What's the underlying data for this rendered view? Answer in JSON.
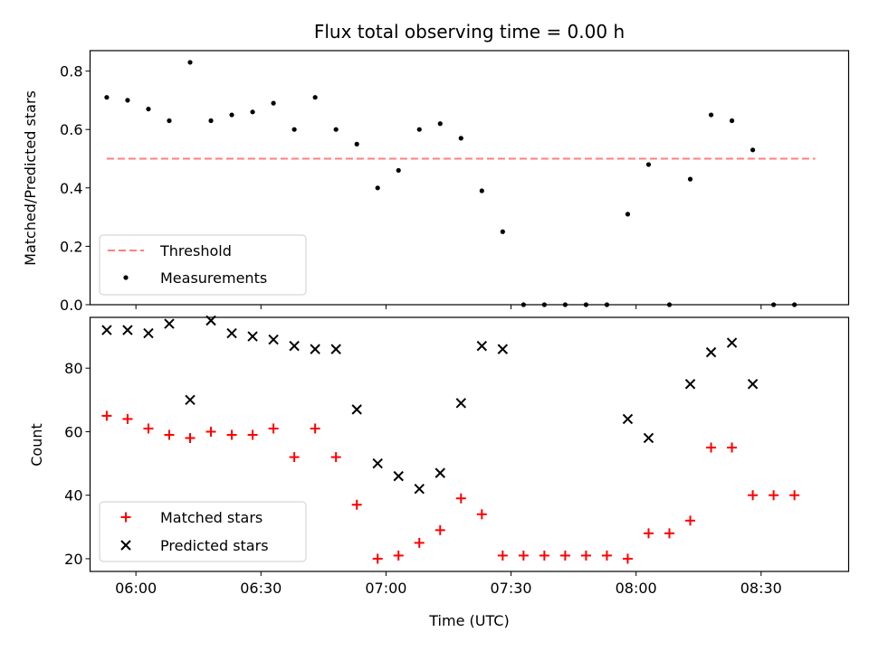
{
  "chart_data": [
    {
      "type": "scatter",
      "title": "Flux total observing time = 0.00 h",
      "ylabel": "Matched/Predicted stars",
      "xlabel": "",
      "xlim": [
        "05:49",
        "08:51"
      ],
      "ylim": [
        0,
        0.87
      ],
      "y_ticks": [
        "0.0",
        "0.2",
        "0.4",
        "0.6",
        "0.8"
      ],
      "grid": false,
      "legend_position": "lower left",
      "threshold": {
        "name": "Threshold",
        "value": 0.5,
        "x_start": "05:53",
        "x_end": "08:43",
        "color": "#ff7f7f",
        "style": "dashed"
      },
      "series": [
        {
          "name": "Measurements",
          "color": "#000000",
          "marker": "dot",
          "x": [
            "05:53",
            "05:58",
            "06:03",
            "06:08",
            "06:13",
            "06:18",
            "06:23",
            "06:28",
            "06:33",
            "06:38",
            "06:43",
            "06:48",
            "06:53",
            "06:58",
            "07:03",
            "07:08",
            "07:13",
            "07:18",
            "07:23",
            "07:28",
            "07:33",
            "07:38",
            "07:43",
            "07:48",
            "07:53",
            "07:58",
            "08:03",
            "08:08",
            "08:13",
            "08:18",
            "08:23",
            "08:28",
            "08:33",
            "08:38"
          ],
          "y": [
            0.71,
            0.7,
            0.67,
            0.63,
            0.83,
            0.63,
            0.65,
            0.66,
            0.69,
            0.6,
            0.71,
            0.6,
            0.55,
            0.4,
            0.46,
            0.6,
            0.62,
            0.57,
            0.39,
            0.25,
            0.0,
            0.0,
            0.0,
            0.0,
            0.0,
            0.31,
            0.48,
            0.0,
            0.43,
            0.65,
            0.63,
            0.53,
            0.0,
            0.0
          ]
        }
      ]
    },
    {
      "type": "scatter",
      "title": "",
      "xlabel": "Time (UTC)",
      "ylabel": "Count",
      "xlim": [
        "05:49",
        "08:51"
      ],
      "x_ticks": [
        "06:00",
        "06:30",
        "07:00",
        "07:30",
        "08:00",
        "08:30"
      ],
      "ylim": [
        16,
        96
      ],
      "y_ticks": [
        "20",
        "40",
        "60",
        "80"
      ],
      "grid": false,
      "legend_position": "lower left",
      "series": [
        {
          "name": "Matched stars",
          "color": "#ff0000",
          "marker": "plus",
          "x": [
            "05:53",
            "05:58",
            "06:03",
            "06:08",
            "06:13",
            "06:18",
            "06:23",
            "06:28",
            "06:33",
            "06:38",
            "06:43",
            "06:48",
            "06:53",
            "06:58",
            "07:03",
            "07:08",
            "07:13",
            "07:18",
            "07:23",
            "07:28",
            "07:33",
            "07:38",
            "07:43",
            "07:48",
            "07:53",
            "07:58",
            "08:03",
            "08:08",
            "08:13",
            "08:18",
            "08:23",
            "08:28",
            "08:33",
            "08:38"
          ],
          "y": [
            65,
            64,
            61,
            59,
            58,
            60,
            59,
            59,
            61,
            52,
            61,
            52,
            37,
            20,
            21,
            25,
            29,
            39,
            34,
            21,
            21,
            21,
            21,
            21,
            21,
            20,
            28,
            28,
            32,
            55,
            55,
            40,
            40,
            40
          ]
        },
        {
          "name": "Predicted stars",
          "color": "#000000",
          "marker": "x",
          "x": [
            "05:53",
            "05:58",
            "06:03",
            "06:08",
            "06:13",
            "06:18",
            "06:23",
            "06:28",
            "06:33",
            "06:38",
            "06:43",
            "06:48",
            "06:53",
            "06:58",
            "07:03",
            "07:08",
            "07:13",
            "07:18",
            "07:23",
            "07:28",
            "07:58",
            "08:03",
            "08:13",
            "08:18",
            "08:23",
            "08:28"
          ],
          "y": [
            92,
            92,
            91,
            94,
            70,
            95,
            91,
            90,
            89,
            87,
            86,
            86,
            67,
            50,
            46,
            42,
            47,
            69,
            87,
            86,
            64,
            58,
            75,
            85,
            88,
            75
          ]
        }
      ]
    }
  ]
}
